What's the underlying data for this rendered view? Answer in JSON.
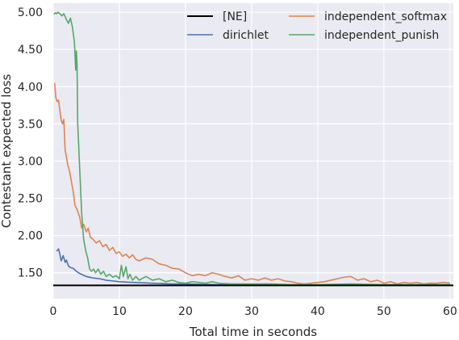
{
  "chart_data": {
    "type": "line",
    "xlabel": "Total time in seconds",
    "ylabel": "Contestant expected loss",
    "xlim": [
      0,
      60.5
    ],
    "ylim": [
      1.15,
      5.12
    ],
    "x_ticks": [
      0,
      10,
      20,
      30,
      40,
      50,
      60
    ],
    "x_tick_labels": [
      "0",
      "10",
      "20",
      "30",
      "40",
      "50",
      "60"
    ],
    "y_ticks": [
      1.5,
      2.0,
      2.5,
      3.0,
      3.5,
      4.0,
      4.5,
      5.0
    ],
    "y_tick_labels": [
      "1.50",
      "2.00",
      "2.50",
      "3.00",
      "3.50",
      "4.00",
      "4.50",
      "5.00"
    ],
    "grid": true,
    "legend_position": "top-right",
    "legend_columns": 2,
    "colors": {
      "background": "#eaeaf2",
      "grid": "#ffffff",
      "ne": "#000000",
      "dirichlet": "#4c72b0",
      "independent_softmax": "#dd8452",
      "independent_punish": "#55a868"
    },
    "series": [
      {
        "name": "[NE]",
        "color": "#000000",
        "x": [
          0,
          60.5
        ],
        "y": [
          1.33,
          1.33
        ]
      },
      {
        "name": "dirichlet",
        "color": "#4c72b0",
        "x": [
          0.5,
          0.8,
          1.0,
          1.2,
          1.5,
          1.8,
          2.0,
          2.3,
          2.6,
          3.0,
          3.5,
          4.0,
          4.5,
          5.0,
          6.0,
          7.0,
          8.0,
          9.0,
          10.0,
          12.0,
          15.0,
          18.0,
          20.0,
          25.0,
          30.0,
          35.0,
          40.0,
          45.0,
          50.0,
          55.0,
          60.0
        ],
        "y": [
          1.79,
          1.82,
          1.75,
          1.66,
          1.73,
          1.64,
          1.67,
          1.59,
          1.57,
          1.56,
          1.52,
          1.49,
          1.47,
          1.45,
          1.43,
          1.42,
          1.4,
          1.39,
          1.38,
          1.37,
          1.36,
          1.35,
          1.35,
          1.34,
          1.34,
          1.34,
          1.34,
          1.34,
          1.34,
          1.34,
          1.34
        ]
      },
      {
        "name": "independent_softmax",
        "color": "#dd8452",
        "x": [
          0.2,
          0.4,
          0.6,
          0.8,
          1.0,
          1.2,
          1.4,
          1.6,
          1.8,
          2.0,
          2.2,
          2.5,
          2.8,
          3.0,
          3.3,
          3.6,
          4.0,
          4.3,
          4.6,
          5.0,
          5.3,
          5.6,
          6.0,
          6.5,
          7.0,
          7.5,
          8.0,
          8.5,
          9.0,
          9.5,
          10.0,
          10.5,
          11.0,
          11.5,
          12.0,
          12.5,
          13.0,
          14.0,
          15.0,
          16.0,
          17.0,
          18.0,
          19.0,
          20.0,
          21.0,
          22.0,
          23.0,
          24.0,
          25.0,
          26.0,
          27.0,
          28.0,
          29.0,
          30.0,
          31.0,
          32.0,
          33.0,
          34.0,
          35.0,
          36.0,
          37.0,
          38.0,
          39.0,
          40.0,
          41.0,
          42.0,
          43.0,
          44.0,
          45.0,
          46.0,
          47.0,
          48.0,
          49.0,
          50.0,
          51.0,
          52.0,
          53.0,
          54.0,
          55.0,
          56.0,
          57.0,
          58.0,
          59.0,
          60.0
        ],
        "y": [
          4.05,
          3.85,
          3.8,
          3.82,
          3.68,
          3.55,
          3.5,
          3.56,
          3.15,
          3.05,
          2.95,
          2.85,
          2.7,
          2.6,
          2.4,
          2.35,
          2.25,
          2.1,
          2.15,
          2.05,
          2.1,
          1.98,
          1.95,
          1.9,
          1.93,
          1.85,
          1.88,
          1.8,
          1.84,
          1.76,
          1.78,
          1.72,
          1.75,
          1.7,
          1.74,
          1.68,
          1.66,
          1.7,
          1.68,
          1.62,
          1.6,
          1.56,
          1.55,
          1.5,
          1.46,
          1.48,
          1.46,
          1.5,
          1.48,
          1.45,
          1.43,
          1.46,
          1.4,
          1.42,
          1.4,
          1.43,
          1.4,
          1.42,
          1.39,
          1.38,
          1.36,
          1.35,
          1.36,
          1.37,
          1.38,
          1.4,
          1.42,
          1.44,
          1.45,
          1.4,
          1.42,
          1.38,
          1.4,
          1.36,
          1.38,
          1.35,
          1.37,
          1.36,
          1.37,
          1.35,
          1.36,
          1.36,
          1.37,
          1.36
        ]
      },
      {
        "name": "independent_punish",
        "color": "#55a868",
        "x": [
          0.1,
          0.3,
          0.5,
          0.7,
          1.0,
          1.3,
          1.6,
          2.0,
          2.3,
          2.6,
          2.9,
          3.2,
          3.4,
          3.5,
          3.6,
          3.7,
          3.9,
          4.1,
          4.3,
          4.6,
          4.9,
          5.2,
          5.5,
          5.8,
          6.1,
          6.4,
          6.8,
          7.2,
          7.6,
          8.0,
          8.5,
          9.0,
          9.5,
          10.0,
          10.3,
          10.6,
          11.0,
          11.3,
          11.6,
          12.0,
          12.5,
          13.0,
          14.0,
          15.0,
          16.0,
          17.0,
          18.0,
          19.0,
          20.0,
          21.0,
          22.0,
          23.0,
          24.0,
          25.0,
          27.0,
          30.0,
          33.0,
          36.0,
          40.0,
          45.0,
          50.0,
          55.0,
          60.0
        ],
        "y": [
          4.97,
          4.99,
          4.98,
          5.0,
          4.98,
          4.95,
          4.98,
          4.9,
          4.85,
          4.92,
          4.8,
          4.6,
          4.22,
          4.48,
          4.3,
          3.5,
          3.1,
          2.7,
          2.3,
          1.95,
          1.8,
          1.7,
          1.55,
          1.52,
          1.55,
          1.5,
          1.55,
          1.48,
          1.52,
          1.45,
          1.48,
          1.44,
          1.46,
          1.42,
          1.6,
          1.45,
          1.58,
          1.42,
          1.48,
          1.4,
          1.45,
          1.4,
          1.45,
          1.4,
          1.42,
          1.38,
          1.4,
          1.37,
          1.36,
          1.38,
          1.37,
          1.36,
          1.38,
          1.36,
          1.35,
          1.35,
          1.35,
          1.34,
          1.34,
          1.35,
          1.34,
          1.34,
          1.34
        ]
      }
    ]
  }
}
